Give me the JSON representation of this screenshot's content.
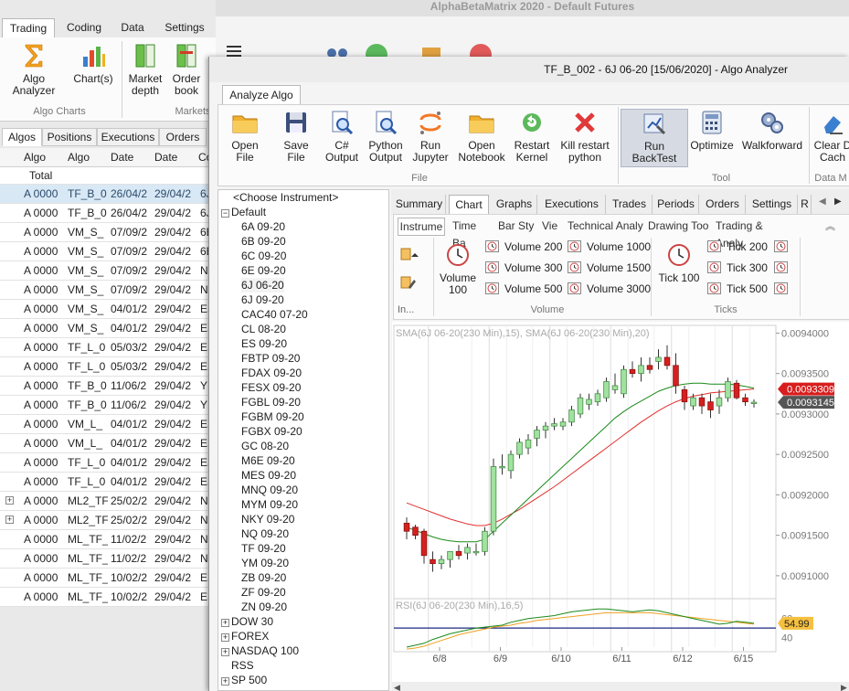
{
  "bg": {
    "title": "AlphaBetaMatrix 2020 - Default Futures",
    "tabs": [
      "Trading",
      "Coding",
      "Data",
      "Settings"
    ],
    "buttons": {
      "algo_analyzer": "Algo Analyzer",
      "charts": "Chart(s)",
      "market_depth": "Market depth",
      "order_book": "Order book"
    },
    "groups": {
      "algo_charts": "Algo  Charts",
      "markets": "Markets"
    },
    "grid_tabs": [
      "Algos",
      "Positions",
      "Executions",
      "Orders"
    ],
    "columns": [
      "Algo",
      "Algo",
      "Date",
      "Date",
      "Co"
    ],
    "total_label": "Total",
    "rows": [
      {
        "a": "A 0000",
        "b": "TF_B_0",
        "c": "26/04/2",
        "d": "29/04/2",
        "e": "6J",
        "sel": true
      },
      {
        "a": "A 0000",
        "b": "TF_B_0",
        "c": "26/04/2",
        "d": "29/04/2",
        "e": "6J"
      },
      {
        "a": "A 0000",
        "b": "VM_S_",
        "c": "07/09/2",
        "d": "29/04/2",
        "e": "6E"
      },
      {
        "a": "A 0000",
        "b": "VM_S_",
        "c": "07/09/2",
        "d": "29/04/2",
        "e": "6E"
      },
      {
        "a": "A 0000",
        "b": "VM_S_",
        "c": "07/09/2",
        "d": "29/04/2",
        "e": "N"
      },
      {
        "a": "A 0000",
        "b": "VM_S_",
        "c": "07/09/2",
        "d": "29/04/2",
        "e": "N"
      },
      {
        "a": "A 0000",
        "b": "VM_S_",
        "c": "04/01/2",
        "d": "29/04/2",
        "e": "ES"
      },
      {
        "a": "A 0000",
        "b": "VM_S_",
        "c": "04/01/2",
        "d": "29/04/2",
        "e": "ES"
      },
      {
        "a": "A 0000",
        "b": "TF_L_0",
        "c": "05/03/2",
        "d": "29/04/2",
        "e": "ES"
      },
      {
        "a": "A 0000",
        "b": "TF_L_0",
        "c": "05/03/2",
        "d": "29/04/2",
        "e": "ES"
      },
      {
        "a": "A 0000",
        "b": "TF_B_0",
        "c": "11/06/2",
        "d": "29/04/2",
        "e": "YM"
      },
      {
        "a": "A 0000",
        "b": "TF_B_0",
        "c": "11/06/2",
        "d": "29/04/2",
        "e": "YM"
      },
      {
        "a": "A 0000",
        "b": "VM_L_",
        "c": "04/01/2",
        "d": "29/04/2",
        "e": "ES"
      },
      {
        "a": "A 0000",
        "b": "VM_L_",
        "c": "04/01/2",
        "d": "29/04/2",
        "e": "ES"
      },
      {
        "a": "A 0000",
        "b": "TF_L_0",
        "c": "04/01/2",
        "d": "29/04/2",
        "e": "ES"
      },
      {
        "a": "A 0000",
        "b": "TF_L_0",
        "c": "04/01/2",
        "d": "29/04/2",
        "e": "ES"
      },
      {
        "a": "A 0000",
        "b": "ML2_TF",
        "c": "25/02/2",
        "d": "29/04/2",
        "e": "N",
        "plus": true
      },
      {
        "a": "A 0000",
        "b": "ML2_TF",
        "c": "25/02/2",
        "d": "29/04/2",
        "e": "N",
        "plus": true
      },
      {
        "a": "A 0000",
        "b": "ML_TF_",
        "c": "11/02/2",
        "d": "29/04/2",
        "e": "N"
      },
      {
        "a": "A 0000",
        "b": "ML_TF_",
        "c": "11/02/2",
        "d": "29/04/2",
        "e": "N"
      },
      {
        "a": "A 0000",
        "b": "ML_TF_",
        "c": "10/02/2",
        "d": "29/04/2",
        "e": "ES"
      },
      {
        "a": "A 0000",
        "b": "ML_TF_",
        "c": "10/02/2",
        "d": "29/04/2",
        "e": "ES"
      }
    ]
  },
  "win": {
    "title": "TF_B_002 - 6J 06-20 [15/06/2020] - Algo Analyzer",
    "ribbon_tab": "Analyze Algo",
    "buttons": {
      "open_file": "Open File",
      "save_file": "Save File",
      "cs_output": "C#\nOutput",
      "python_output": "Python\nOutput",
      "run_jupyter": "Run\nJupyter",
      "open_notebook": "Open\nNotebook",
      "restart_kernel": "Restart\nKernel",
      "kill_python": "Kill restart\npython",
      "run_backtest": "Run BackTest",
      "optimize": "Optimize",
      "walkforward": "Walkforward",
      "clear_cache": "Clear D\nCach"
    },
    "groups": {
      "file": "File",
      "tool": "Tool",
      "data": "Data M"
    },
    "tree": {
      "choose": "<Choose Instrument>",
      "default_label": "Default",
      "default_items": [
        "6A 09-20",
        "6B 09-20",
        "6C 09-20",
        "6E 09-20",
        "6J 06-20",
        "6J 09-20",
        "CAC40 07-20",
        "CL 08-20",
        "ES 09-20",
        "FBTP 09-20",
        "FDAX 09-20",
        "FESX 09-20",
        "FGBL 09-20",
        "FGBM 09-20",
        "FGBX 09-20",
        "GC 08-20",
        "M6E 09-20",
        "MES 09-20",
        "MNQ 09-20",
        "MYM 09-20",
        "NKY 09-20",
        "NQ 09-20",
        "TF 09-20",
        "YM 09-20",
        "ZB 09-20",
        "ZF 09-20",
        "ZN 09-20"
      ],
      "groups_after": [
        {
          "label": "DOW 30",
          "plus": true
        },
        {
          "label": "FOREX",
          "plus": true
        },
        {
          "label": "NASDAQ 100",
          "plus": true
        },
        {
          "label": "RSS",
          "plus": false
        },
        {
          "label": "SP 500",
          "plus": true
        }
      ]
    },
    "content_tabs": [
      "Summary",
      "Chart",
      "Graphs",
      "Executions",
      "Trades",
      "Periods",
      "Orders",
      "Settings",
      "R"
    ],
    "sub_tabs": [
      "Instrume",
      "Time Ba",
      "Bar Sty",
      "Vie",
      "Technical Analy",
      "Drawing Too",
      "Trading & Analy"
    ],
    "instr": {
      "in_label": "In...",
      "volume100": "Volume\n100",
      "vol_items": [
        "Volume 200",
        "Volume 1000",
        "Volume 300",
        "Volume 1500",
        "Volume 500",
        "Volume 3000"
      ],
      "tick100": "Tick 100",
      "tick_items": [
        "Tick 200",
        "Tick 300",
        "Tick 500"
      ],
      "volume_group": "Volume",
      "ticks_group": "Ticks"
    }
  },
  "chart_data": {
    "type": "candlestick",
    "title": "SMA(6J 06-20(230 Min),15), SMA(6J 06-20(230 Min),20)",
    "rsi_title": "RSI(6J 06-20(230 Min),16,5)",
    "ylim": [
      0.009075,
      0.009405
    ],
    "yticks": [
      "0.0094000",
      "0.0093500",
      "0.0093000",
      "0.0092500",
      "0.0092000",
      "0.0091500",
      "0.0091000"
    ],
    "x_labels": [
      "6/8",
      "6/9",
      "6/10",
      "6/11",
      "6/12",
      "6/15"
    ],
    "last_price": "0.0093309",
    "prev_price": "0.0093145",
    "rsi_value": "54.99",
    "rsi_ticks": [
      "60",
      "40"
    ],
    "colors": {
      "up": "#9fe39f",
      "down": "#d62020",
      "sma15": "#1a8a1a",
      "sma20": "#e23030",
      "rsi": "#1a8a1a",
      "rsi_signal": "#f0a020",
      "rsi_line": "#1e2a80"
    },
    "candles": [
      {
        "o": 0.009165,
        "h": 0.009172,
        "l": 0.009145,
        "c": 0.009155
      },
      {
        "o": 0.00916,
        "h": 0.009163,
        "l": 0.009145,
        "c": 0.00915
      },
      {
        "o": 0.009155,
        "h": 0.009158,
        "l": 0.009115,
        "c": 0.009125
      },
      {
        "o": 0.00912,
        "h": 0.00913,
        "l": 0.009105,
        "c": 0.009115
      },
      {
        "o": 0.009115,
        "h": 0.009125,
        "l": 0.009108,
        "c": 0.00912
      },
      {
        "o": 0.00912,
        "h": 0.00913,
        "l": 0.00911,
        "c": 0.00913
      },
      {
        "o": 0.00913,
        "h": 0.009138,
        "l": 0.00912,
        "c": 0.009125
      },
      {
        "o": 0.009128,
        "h": 0.00914,
        "l": 0.00912,
        "c": 0.009135
      },
      {
        "o": 0.00913,
        "h": 0.00914,
        "l": 0.009125,
        "c": 0.00913
      },
      {
        "o": 0.00913,
        "h": 0.00916,
        "l": 0.009125,
        "c": 0.009155
      },
      {
        "o": 0.009155,
        "h": 0.009245,
        "l": 0.00915,
        "c": 0.009235
      },
      {
        "o": 0.009235,
        "h": 0.00925,
        "l": 0.009225,
        "c": 0.009235
      },
      {
        "o": 0.00923,
        "h": 0.009255,
        "l": 0.00922,
        "c": 0.00925
      },
      {
        "o": 0.00925,
        "h": 0.00927,
        "l": 0.009245,
        "c": 0.009265
      },
      {
        "o": 0.009258,
        "h": 0.009275,
        "l": 0.00925,
        "c": 0.009268
      },
      {
        "o": 0.00927,
        "h": 0.009285,
        "l": 0.00926,
        "c": 0.00928
      },
      {
        "o": 0.00928,
        "h": 0.00929,
        "l": 0.00927,
        "c": 0.009285
      },
      {
        "o": 0.009285,
        "h": 0.009295,
        "l": 0.00928,
        "c": 0.009288
      },
      {
        "o": 0.009285,
        "h": 0.009295,
        "l": 0.00928,
        "c": 0.00929
      },
      {
        "o": 0.00929,
        "h": 0.00931,
        "l": 0.009285,
        "c": 0.009305
      },
      {
        "o": 0.0093,
        "h": 0.009325,
        "l": 0.009295,
        "c": 0.00932
      },
      {
        "o": 0.009312,
        "h": 0.009325,
        "l": 0.009305,
        "c": 0.009318
      },
      {
        "o": 0.009315,
        "h": 0.00933,
        "l": 0.00931,
        "c": 0.009325
      },
      {
        "o": 0.00932,
        "h": 0.009345,
        "l": 0.009315,
        "c": 0.00934
      },
      {
        "o": 0.00933,
        "h": 0.00935,
        "l": 0.009325,
        "c": 0.009335
      },
      {
        "o": 0.009325,
        "h": 0.00936,
        "l": 0.00932,
        "c": 0.009355
      },
      {
        "o": 0.009355,
        "h": 0.009365,
        "l": 0.009345,
        "c": 0.00935
      },
      {
        "o": 0.00935,
        "h": 0.00937,
        "l": 0.00934,
        "c": 0.00936
      },
      {
        "o": 0.00936,
        "h": 0.00937,
        "l": 0.00935,
        "c": 0.009355
      },
      {
        "o": 0.009365,
        "h": 0.00938,
        "l": 0.009355,
        "c": 0.00937
      },
      {
        "o": 0.00937,
        "h": 0.009385,
        "l": 0.009355,
        "c": 0.00936
      },
      {
        "o": 0.00936,
        "h": 0.009375,
        "l": 0.009325,
        "c": 0.009335
      },
      {
        "o": 0.00933,
        "h": 0.009335,
        "l": 0.009305,
        "c": 0.009315
      },
      {
        "o": 0.00931,
        "h": 0.009325,
        "l": 0.009305,
        "c": 0.00932
      },
      {
        "o": 0.00932,
        "h": 0.009325,
        "l": 0.0093,
        "c": 0.00931
      },
      {
        "o": 0.009315,
        "h": 0.009325,
        "l": 0.009295,
        "c": 0.009305
      },
      {
        "o": 0.00931,
        "h": 0.00933,
        "l": 0.0093,
        "c": 0.00932
      },
      {
        "o": 0.00932,
        "h": 0.009345,
        "l": 0.009315,
        "c": 0.00934
      },
      {
        "o": 0.009338,
        "h": 0.009342,
        "l": 0.009318,
        "c": 0.00932
      },
      {
        "o": 0.00932,
        "h": 0.009325,
        "l": 0.00931,
        "c": 0.009315
      },
      {
        "o": 0.009313,
        "h": 0.009318,
        "l": 0.009308,
        "c": 0.0093145
      }
    ],
    "sma15": [
      0.00916,
      0.009156,
      0.009152,
      0.009148,
      0.009145,
      0.009143,
      0.009142,
      0.009142,
      0.009142,
      0.009145,
      0.009155,
      0.009165,
      0.009175,
      0.009185,
      0.009195,
      0.009205,
      0.009215,
      0.009225,
      0.009235,
      0.009245,
      0.009255,
      0.009265,
      0.009275,
      0.009285,
      0.009295,
      0.009303,
      0.00931,
      0.009316,
      0.009322,
      0.009328,
      0.009332,
      0.009335,
      0.009337,
      0.009338,
      0.009338,
      0.009337,
      0.009337,
      0.009337,
      0.009336,
      0.009334,
      0.009332
    ],
    "sma20": [
      0.00919,
      0.009186,
      0.009182,
      0.009178,
      0.009174,
      0.00917,
      0.009167,
      0.009164,
      0.009162,
      0.009162,
      0.009165,
      0.00917,
      0.009176,
      0.009182,
      0.009189,
      0.009196,
      0.009203,
      0.00921,
      0.009218,
      0.009226,
      0.009234,
      0.009242,
      0.00925,
      0.009258,
      0.009266,
      0.009274,
      0.009282,
      0.00929,
      0.009297,
      0.009304,
      0.00931,
      0.009315,
      0.009319,
      0.009322,
      0.009324,
      0.009326,
      0.009327,
      0.009328,
      0.009329,
      0.00933,
      0.0093309
    ],
    "rsi": [
      30,
      32,
      34,
      38,
      41,
      44,
      46,
      48,
      50,
      51,
      52,
      53,
      56,
      58,
      60,
      61,
      62,
      63,
      65,
      67,
      68,
      69,
      70,
      70,
      69,
      68,
      67,
      68,
      69,
      68,
      66,
      64,
      62,
      60,
      58,
      56,
      54,
      55,
      57,
      56,
      54.99
    ],
    "rsi_signal": [
      28,
      29,
      31,
      34,
      37,
      40,
      43,
      45,
      47,
      49,
      51,
      52,
      53,
      55,
      56,
      58,
      59,
      60,
      61,
      62,
      63,
      64,
      65,
      66,
      66,
      66,
      66,
      66,
      66,
      65,
      64,
      63,
      62,
      61,
      60,
      59,
      58,
      57,
      56,
      55,
      54
    ],
    "rsi_ylim": [
      30,
      75
    ],
    "rsi_level": 50
  }
}
